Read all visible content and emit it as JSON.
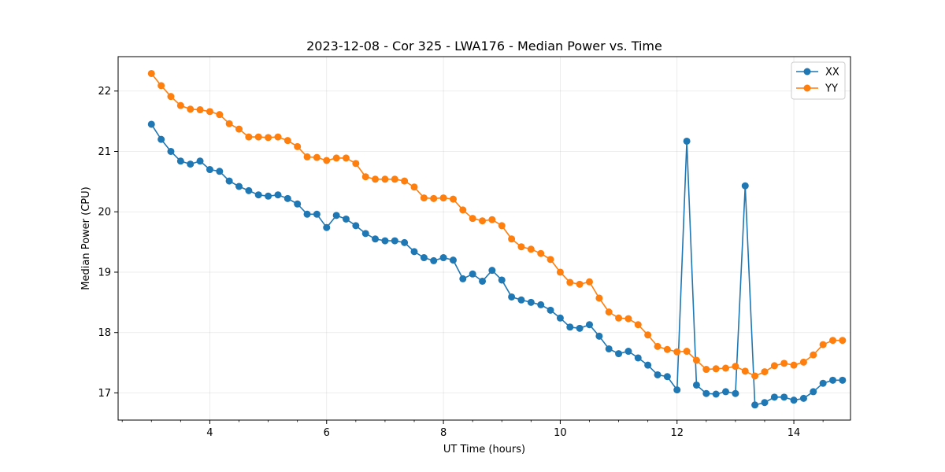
{
  "chart_data": {
    "type": "line",
    "title": "2023-12-08 - Cor 325 - LWA176 - Median Power vs. Time",
    "xlabel": "UT Time (hours)",
    "ylabel": "Median Power (CPU)",
    "xlim": [
      2.43,
      14.97
    ],
    "ylim": [
      16.55,
      22.57
    ],
    "xticks": [
      4,
      6,
      8,
      10,
      12,
      14
    ],
    "yticks": [
      17,
      18,
      19,
      20,
      21,
      22
    ],
    "grid": true,
    "legend_position": "top-right",
    "x": [
      3.0,
      3.167,
      3.333,
      3.5,
      3.667,
      3.833,
      4.0,
      4.167,
      4.333,
      4.5,
      4.667,
      4.833,
      5.0,
      5.167,
      5.333,
      5.5,
      5.667,
      5.833,
      6.0,
      6.167,
      6.333,
      6.5,
      6.667,
      6.833,
      7.0,
      7.167,
      7.333,
      7.5,
      7.667,
      7.833,
      8.0,
      8.167,
      8.333,
      8.5,
      8.667,
      8.833,
      9.0,
      9.167,
      9.333,
      9.5,
      9.667,
      9.833,
      10.0,
      10.167,
      10.333,
      10.5,
      10.667,
      10.833,
      11.0,
      11.167,
      11.333,
      11.5,
      11.667,
      11.833,
      12.0,
      12.167,
      12.333,
      12.5,
      12.667,
      12.833,
      13.0,
      13.167,
      13.333,
      13.5,
      13.667,
      13.833,
      14.0,
      14.167,
      14.333,
      14.5,
      14.667,
      14.833
    ],
    "series": [
      {
        "name": "XX",
        "color": "#1f77b4",
        "values": [
          21.45,
          21.2,
          21.0,
          20.84,
          20.79,
          20.84,
          20.7,
          20.67,
          20.51,
          20.42,
          20.35,
          20.28,
          20.26,
          20.28,
          20.22,
          20.13,
          19.96,
          19.96,
          19.74,
          19.94,
          19.88,
          19.77,
          19.64,
          19.55,
          19.52,
          19.52,
          19.49,
          19.34,
          19.24,
          19.19,
          19.24,
          19.2,
          18.89,
          18.97,
          18.85,
          19.03,
          18.87,
          18.59,
          18.54,
          18.5,
          18.46,
          18.37,
          18.24,
          18.09,
          18.07,
          18.13,
          17.94,
          17.73,
          17.65,
          17.69,
          17.58,
          17.46,
          17.3,
          17.27,
          17.05,
          21.17,
          17.13,
          16.99,
          16.98,
          17.02,
          16.99,
          20.43,
          16.8,
          16.84,
          16.93,
          16.93,
          16.88,
          16.91,
          17.02,
          17.16,
          17.21,
          17.21
        ]
      },
      {
        "name": "YY",
        "color": "#ff7f0e",
        "values": [
          22.29,
          22.09,
          21.91,
          21.76,
          21.7,
          21.69,
          21.66,
          21.61,
          21.46,
          21.37,
          21.24,
          21.24,
          21.23,
          21.24,
          21.18,
          21.08,
          20.91,
          20.9,
          20.85,
          20.89,
          20.89,
          20.8,
          20.58,
          20.54,
          20.54,
          20.54,
          20.51,
          20.41,
          20.23,
          20.22,
          20.23,
          20.21,
          20.03,
          19.89,
          19.85,
          19.87,
          19.77,
          19.55,
          19.42,
          19.38,
          19.31,
          19.21,
          19.0,
          18.83,
          18.8,
          18.84,
          18.57,
          18.34,
          18.24,
          18.23,
          18.13,
          17.96,
          17.77,
          17.72,
          17.68,
          17.69,
          17.54,
          17.39,
          17.4,
          17.41,
          17.44,
          17.36,
          17.28,
          17.35,
          17.45,
          17.49,
          17.46,
          17.51,
          17.63,
          17.8,
          17.87,
          17.87
        ]
      }
    ]
  }
}
